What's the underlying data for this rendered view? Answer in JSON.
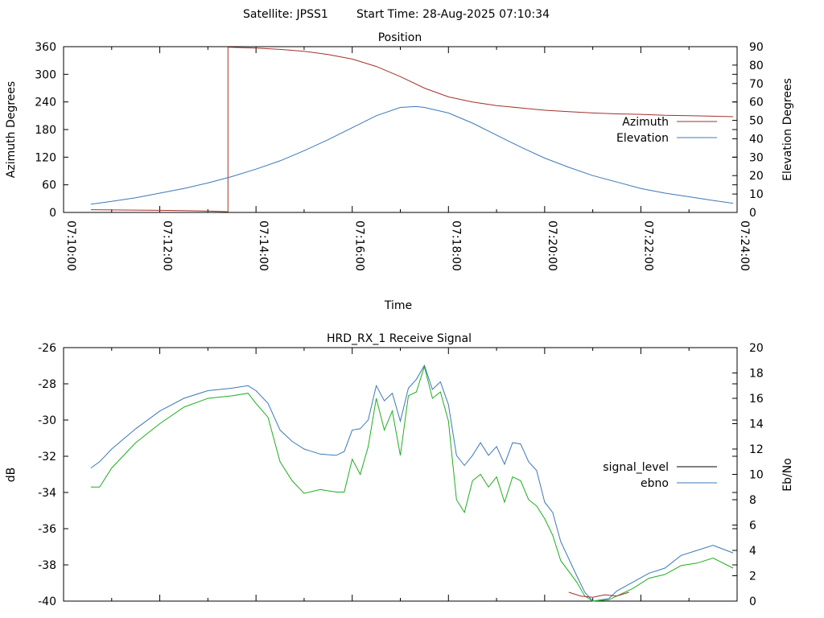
{
  "header": {
    "satellite": "Satellite: JPSS1",
    "start_time": "Start Time: 28-Aug-2025 07:10:34"
  },
  "chart_data": [
    {
      "type": "line",
      "title": "Position",
      "xlabel": "Time",
      "ylabel": "Azimuth Degrees",
      "y2label": "Elevation Degrees",
      "x_ticks": [
        "07:10:00",
        "07:12:00",
        "07:14:00",
        "07:16:00",
        "07:18:00",
        "07:20:00",
        "07:22:00",
        "07:24:00"
      ],
      "xlim": [
        "07:10:00",
        "07:24:00"
      ],
      "ylim": [
        0,
        360
      ],
      "y_ticks": [
        "0",
        "60",
        "120",
        "180",
        "240",
        "300",
        "360"
      ],
      "y2lim": [
        0,
        90
      ],
      "y2_ticks": [
        "0",
        "10",
        "20",
        "30",
        "40",
        "50",
        "60",
        "70",
        "80",
        "90"
      ],
      "legend_position": "right",
      "colors": {
        "Azimuth": "#a0322c",
        "Elevation": "#3b78b8"
      },
      "series": [
        {
          "name": "Azimuth",
          "axis": "y",
          "points": [
            [
              "07:10:34",
              6
            ],
            [
              "07:11:00",
              5.5
            ],
            [
              "07:11:30",
              5
            ],
            [
              "07:12:00",
              4.5
            ],
            [
              "07:12:30",
              4
            ],
            [
              "07:13:00",
              3
            ],
            [
              "07:13:25",
              1.5
            ],
            [
              "07:13:25",
              359
            ],
            [
              "07:14:00",
              357
            ],
            [
              "07:14:30",
              354
            ],
            [
              "07:15:00",
              350
            ],
            [
              "07:15:30",
              343
            ],
            [
              "07:16:00",
              333
            ],
            [
              "07:16:30",
              317
            ],
            [
              "07:17:00",
              295
            ],
            [
              "07:17:30",
              270
            ],
            [
              "07:18:00",
              251
            ],
            [
              "07:18:30",
              240
            ],
            [
              "07:19:00",
              232
            ],
            [
              "07:19:30",
              227
            ],
            [
              "07:20:00",
              222
            ],
            [
              "07:20:30",
              219
            ],
            [
              "07:21:00",
              216
            ],
            [
              "07:21:30",
              214
            ],
            [
              "07:22:00",
              213
            ],
            [
              "07:22:30",
              211
            ],
            [
              "07:23:00",
              210
            ],
            [
              "07:23:30",
              209
            ],
            [
              "07:23:55",
              208
            ]
          ]
        },
        {
          "name": "Elevation",
          "axis": "y2",
          "points": [
            [
              "07:10:34",
              4.5
            ],
            [
              "07:11:00",
              6
            ],
            [
              "07:11:30",
              8
            ],
            [
              "07:12:00",
              10.5
            ],
            [
              "07:12:30",
              13
            ],
            [
              "07:13:00",
              16
            ],
            [
              "07:13:30",
              19.5
            ],
            [
              "07:14:00",
              23.5
            ],
            [
              "07:14:30",
              28
            ],
            [
              "07:15:00",
              33.5
            ],
            [
              "07:15:30",
              39.5
            ],
            [
              "07:16:00",
              46
            ],
            [
              "07:16:30",
              52.5
            ],
            [
              "07:17:00",
              57
            ],
            [
              "07:17:20",
              57.5
            ],
            [
              "07:17:30",
              57
            ],
            [
              "07:18:00",
              54
            ],
            [
              "07:18:30",
              48.5
            ],
            [
              "07:19:00",
              42
            ],
            [
              "07:19:30",
              35.5
            ],
            [
              "07:20:00",
              29.5
            ],
            [
              "07:20:30",
              24.5
            ],
            [
              "07:21:00",
              20
            ],
            [
              "07:21:30",
              16.5
            ],
            [
              "07:22:00",
              13
            ],
            [
              "07:22:30",
              10.5
            ],
            [
              "07:23:00",
              8.5
            ],
            [
              "07:23:30",
              6.5
            ],
            [
              "07:23:55",
              5
            ]
          ]
        }
      ]
    },
    {
      "type": "line",
      "title": "HRD_RX_1 Receive Signal",
      "ylabel": "dB",
      "y2label": "Eb/No",
      "xlim": [
        "07:10:00",
        "07:24:00"
      ],
      "ylim": [
        -40,
        -26
      ],
      "y_ticks": [
        "-26",
        "-28",
        "-30",
        "-32",
        "-34",
        "-36",
        "-38",
        "-40"
      ],
      "y2lim": [
        0,
        20
      ],
      "y2_ticks": [
        "0",
        "2",
        "4",
        "6",
        "8",
        "10",
        "12",
        "14",
        "16",
        "18",
        "20"
      ],
      "legend_position": "right",
      "colors": {
        "signal_level": "#000000",
        "ebno": "#3b78b8",
        "green_trace": "#1fae1f",
        "red_trace": "#a0322c"
      },
      "legend": [
        "signal_level",
        "ebno"
      ],
      "series": [
        {
          "name": "ebno",
          "axis": "y2",
          "points": [
            [
              "07:10:34",
              10.5
            ],
            [
              "07:10:45",
              11
            ],
            [
              "07:11:00",
              12
            ],
            [
              "07:11:30",
              13.6
            ],
            [
              "07:12:00",
              15
            ],
            [
              "07:12:30",
              16
            ],
            [
              "07:13:00",
              16.6
            ],
            [
              "07:13:30",
              16.8
            ],
            [
              "07:13:50",
              17
            ],
            [
              "07:14:00",
              16.6
            ],
            [
              "07:14:15",
              15.6
            ],
            [
              "07:14:30",
              13.5
            ],
            [
              "07:14:45",
              12.6
            ],
            [
              "07:15:00",
              12
            ],
            [
              "07:15:20",
              11.6
            ],
            [
              "07:15:40",
              11.5
            ],
            [
              "07:15:50",
              11.8
            ],
            [
              "07:16:00",
              13.5
            ],
            [
              "07:16:10",
              13.6
            ],
            [
              "07:16:20",
              14.3
            ],
            [
              "07:16:30",
              17
            ],
            [
              "07:16:40",
              15.8
            ],
            [
              "07:16:50",
              16.4
            ],
            [
              "07:17:00",
              14.2
            ],
            [
              "07:17:10",
              16.8
            ],
            [
              "07:17:20",
              17.5
            ],
            [
              "07:17:30",
              18.6
            ],
            [
              "07:17:40",
              16.7
            ],
            [
              "07:17:50",
              17.3
            ],
            [
              "07:18:00",
              15.5
            ],
            [
              "07:18:10",
              11.5
            ],
            [
              "07:18:20",
              10.7
            ],
            [
              "07:18:30",
              11.5
            ],
            [
              "07:18:40",
              12.5
            ],
            [
              "07:18:50",
              11.5
            ],
            [
              "07:19:00",
              12.2
            ],
            [
              "07:19:10",
              10.8
            ],
            [
              "07:19:20",
              12.5
            ],
            [
              "07:19:30",
              12.4
            ],
            [
              "07:19:40",
              11
            ],
            [
              "07:19:50",
              10.3
            ],
            [
              "07:20:00",
              7.8
            ],
            [
              "07:20:10",
              7
            ],
            [
              "07:20:20",
              4.7
            ],
            [
              "07:20:40",
              2
            ],
            [
              "07:20:50",
              0.7
            ],
            [
              "07:21:00",
              0
            ],
            [
              "07:21:20",
              0.2
            ],
            [
              "07:21:30",
              0.8
            ],
            [
              "07:21:50",
              1.5
            ],
            [
              "07:22:10",
              2.2
            ],
            [
              "07:22:30",
              2.6
            ],
            [
              "07:22:50",
              3.6
            ],
            [
              "07:23:10",
              4
            ],
            [
              "07:23:30",
              4.4
            ],
            [
              "07:23:55",
              3.8
            ]
          ]
        },
        {
          "name": "green_trace",
          "axis": "y2",
          "points": [
            [
              "07:10:34",
              9
            ],
            [
              "07:10:45",
              9
            ],
            [
              "07:11:00",
              10.5
            ],
            [
              "07:11:30",
              12.5
            ],
            [
              "07:12:00",
              14
            ],
            [
              "07:12:30",
              15.3
            ],
            [
              "07:13:00",
              16
            ],
            [
              "07:13:30",
              16.2
            ],
            [
              "07:13:50",
              16.4
            ],
            [
              "07:14:00",
              15.6
            ],
            [
              "07:14:15",
              14.5
            ],
            [
              "07:14:30",
              11
            ],
            [
              "07:14:45",
              9.5
            ],
            [
              "07:15:00",
              8.5
            ],
            [
              "07:15:20",
              8.8
            ],
            [
              "07:15:40",
              8.6
            ],
            [
              "07:15:50",
              8.6
            ],
            [
              "07:16:00",
              11.2
            ],
            [
              "07:16:10",
              10
            ],
            [
              "07:16:20",
              12.2
            ],
            [
              "07:16:30",
              16
            ],
            [
              "07:16:40",
              13.5
            ],
            [
              "07:16:50",
              15
            ],
            [
              "07:17:00",
              11.5
            ],
            [
              "07:17:10",
              16.2
            ],
            [
              "07:17:20",
              16.5
            ],
            [
              "07:17:30",
              18.5
            ],
            [
              "07:17:40",
              16
            ],
            [
              "07:17:50",
              16.5
            ],
            [
              "07:18:00",
              14.2
            ],
            [
              "07:18:10",
              8
            ],
            [
              "07:18:20",
              7
            ],
            [
              "07:18:30",
              9.5
            ],
            [
              "07:18:40",
              10
            ],
            [
              "07:18:50",
              9
            ],
            [
              "07:19:00",
              9.8
            ],
            [
              "07:19:10",
              7.8
            ],
            [
              "07:19:20",
              9.8
            ],
            [
              "07:19:30",
              9.5
            ],
            [
              "07:19:40",
              8
            ],
            [
              "07:19:50",
              7.5
            ],
            [
              "07:20:00",
              6.5
            ],
            [
              "07:20:10",
              5.2
            ],
            [
              "07:20:20",
              3.2
            ],
            [
              "07:20:40",
              1.5
            ],
            [
              "07:20:50",
              0.4
            ],
            [
              "07:21:00",
              0
            ],
            [
              "07:21:20",
              0.1
            ],
            [
              "07:21:30",
              0.4
            ],
            [
              "07:21:50",
              1
            ],
            [
              "07:22:10",
              1.8
            ],
            [
              "07:22:30",
              2.1
            ],
            [
              "07:22:50",
              2.8
            ],
            [
              "07:23:10",
              3
            ],
            [
              "07:23:30",
              3.4
            ],
            [
              "07:23:55",
              2.6
            ]
          ]
        },
        {
          "name": "red_trace",
          "axis": "y2",
          "points": [
            [
              "07:20:30",
              0.7
            ],
            [
              "07:20:45",
              0.4
            ],
            [
              "07:21:00",
              0.3
            ],
            [
              "07:21:15",
              0.5
            ],
            [
              "07:21:30",
              0.4
            ],
            [
              "07:21:45",
              0.7
            ]
          ]
        }
      ]
    }
  ]
}
